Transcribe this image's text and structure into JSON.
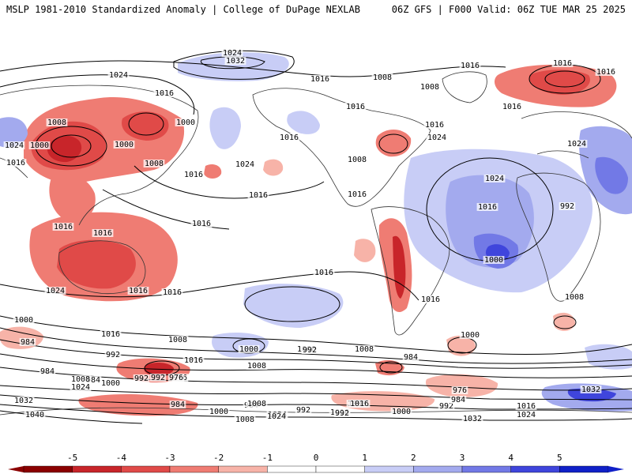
{
  "header": {
    "left": "MSLP 1981-2010 Standardized Anomaly | College of DuPage NEXLAB",
    "right": "06Z GFS | F000 Valid: 06Z TUE MAR 25 2025"
  },
  "colors": {
    "neg5": "#8b0000",
    "neg4": "#c8252a",
    "neg3": "#e04a48",
    "neg2": "#ef7c73",
    "neg1": "#f7b3a8",
    "pos1": "#c8cdf6",
    "pos2": "#a3aaee",
    "pos3": "#7279e6",
    "pos4": "#3f45dc",
    "pos5": "#1020c8",
    "contour": "#000000",
    "coast": "#333333"
  },
  "colorbar": {
    "ticks": [
      "-5",
      "-4",
      "-3",
      "-2",
      "-1",
      "0",
      "1",
      "2",
      "3",
      "4",
      "5"
    ]
  },
  "contour_labels": [
    {
      "text": "1024"
    },
    {
      "text": "1032"
    },
    {
      "text": "1024"
    },
    {
      "text": "1016"
    },
    {
      "text": "1008"
    },
    {
      "text": "1000"
    },
    {
      "text": "1024"
    },
    {
      "text": "1016"
    },
    {
      "text": "1000"
    },
    {
      "text": "1000"
    },
    {
      "text": "1008"
    },
    {
      "text": "1016"
    },
    {
      "text": "1016"
    },
    {
      "text": "1024"
    },
    {
      "text": "1016"
    },
    {
      "text": "1008"
    },
    {
      "text": "1008"
    },
    {
      "text": "1016"
    },
    {
      "text": "1016"
    },
    {
      "text": "1008"
    },
    {
      "text": "1016"
    },
    {
      "text": "1024"
    },
    {
      "text": "1016"
    },
    {
      "text": "1016"
    },
    {
      "text": "1024"
    },
    {
      "text": "1016"
    },
    {
      "text": "1016"
    },
    {
      "text": "1016"
    },
    {
      "text": "1016"
    },
    {
      "text": "1024"
    },
    {
      "text": "1000"
    },
    {
      "text": "992"
    },
    {
      "text": "1008"
    },
    {
      "text": "1016"
    },
    {
      "text": "1016"
    },
    {
      "text": "1024"
    },
    {
      "text": "1016"
    },
    {
      "text": "1016"
    },
    {
      "text": "1016"
    },
    {
      "text": "1016"
    },
    {
      "text": "1016"
    },
    {
      "text": "1000"
    },
    {
      "text": "984"
    },
    {
      "text": "1016"
    },
    {
      "text": "1008"
    },
    {
      "text": "992"
    },
    {
      "text": "1016"
    },
    {
      "text": "1008"
    },
    {
      "text": "1000"
    },
    {
      "text": "992"
    },
    {
      "text": "984"
    },
    {
      "text": "976"
    },
    {
      "text": "984"
    },
    {
      "text": "1008"
    },
    {
      "text": "1024"
    },
    {
      "text": "1000"
    },
    {
      "text": "992"
    },
    {
      "text": "976"
    },
    {
      "text": "1032"
    },
    {
      "text": "1040"
    },
    {
      "text": "984"
    },
    {
      "text": "1000"
    },
    {
      "text": "984"
    },
    {
      "text": "1024"
    },
    {
      "text": "992"
    },
    {
      "text": "1016"
    },
    {
      "text": "1008"
    },
    {
      "text": "1032"
    },
    {
      "text": "1000"
    },
    {
      "text": "992"
    },
    {
      "text": "984"
    },
    {
      "text": "976"
    },
    {
      "text": "1032"
    },
    {
      "text": "1024"
    },
    {
      "text": "1016"
    },
    {
      "text": "1008"
    },
    {
      "text": "1000"
    },
    {
      "text": "984"
    },
    {
      "text": "1024"
    },
    {
      "text": "1008"
    },
    {
      "text": "1000"
    },
    {
      "text": "992"
    },
    {
      "text": "1016"
    },
    {
      "text": "992"
    },
    {
      "text": "1008"
    },
    {
      "text": "1016"
    },
    {
      "text": "1032"
    }
  ]
}
